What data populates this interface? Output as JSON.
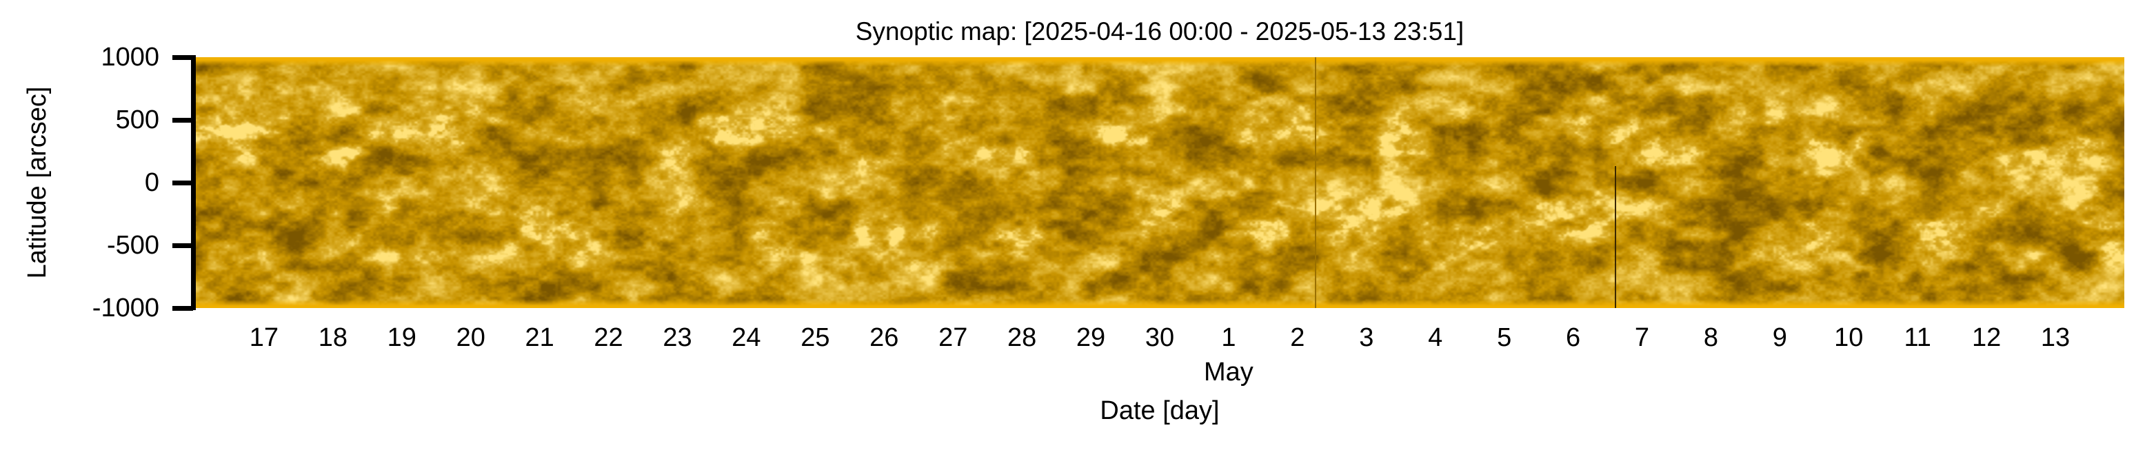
{
  "chart_data": {
    "type": "heatmap",
    "title": "Synoptic map: [2025-04-16 00:00 - 2025-05-13 23:51]",
    "xlabel": "Date [day]",
    "ylabel": "Latitude [arcsec]",
    "x_range_days": [
      0,
      28
    ],
    "x_start": "2025-04-16 00:00",
    "x_end": "2025-05-13 23:51",
    "ylim": [
      -1000,
      1000
    ],
    "yticks": [
      1000,
      500,
      0,
      -500,
      -1000
    ],
    "ytick_labels": [
      "1000",
      "500",
      "0",
      "-500",
      "-1000"
    ],
    "xtick_labels": [
      "17",
      "18",
      "19",
      "20",
      "21",
      "22",
      "23",
      "24",
      "25",
      "26",
      "27",
      "28",
      "29",
      "30",
      "1",
      "2",
      "3",
      "4",
      "5",
      "6",
      "7",
      "8",
      "9",
      "10",
      "11",
      "12",
      "13"
    ],
    "xtick_days": [
      1,
      2,
      3,
      4,
      5,
      6,
      7,
      8,
      9,
      10,
      11,
      12,
      13,
      14,
      15,
      16,
      17,
      18,
      19,
      20,
      21,
      22,
      23,
      24,
      25,
      26,
      27
    ],
    "month_label": "May",
    "month_label_day": 15,
    "grid": false,
    "colormap": {
      "dark": "#7a5600",
      "mid": "#c89400",
      "bright": "#ffe27a",
      "limb": "#f0b000"
    },
    "data_gaps_days": [
      {
        "day": 16.25,
        "color": "#9a7000",
        "lat_top": 1000
      },
      {
        "day": 20.6,
        "color": "#3a2800",
        "lat_top": 130
      }
    ]
  }
}
